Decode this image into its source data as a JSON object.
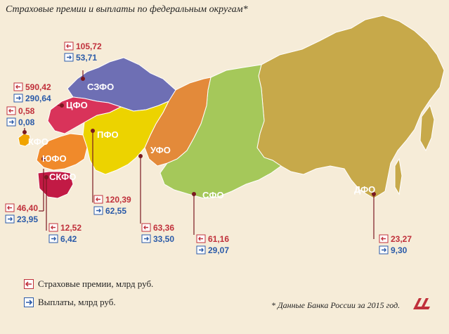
{
  "title": "Страховые премии и выплаты по федеральным округам*",
  "legend": {
    "premiums": "Страховые премии, млрд руб.",
    "payouts": "Выплаты, млрд руб."
  },
  "footnote": "* Данные Банка России за 2015 год.",
  "colors": {
    "premium": "#c0303b",
    "payout": "#2a5aa8",
    "szfo": "#6e6fb4",
    "cfo": "#d9335a",
    "pfo": "#ecd300",
    "ufo": "#e38a3a",
    "sfo": "#a5c85a",
    "dfo": "#c7a94a",
    "kfo": "#f0a400",
    "yufo": "#f08a2b",
    "skfo": "#c21a45"
  },
  "okruga": [
    {
      "id": "szfo",
      "name": "СЗФО",
      "premium": "105,72",
      "payout": "53,71"
    },
    {
      "id": "cfo",
      "name": "ЦФО",
      "premium": "590,42",
      "payout": "290,64"
    },
    {
      "id": "kfo",
      "name": "КФО",
      "premium": "0,58",
      "payout": "0,08"
    },
    {
      "id": "yufo",
      "name": "ЮФО",
      "premium": "46,40",
      "payout": "23,95"
    },
    {
      "id": "skfo",
      "name": "СКФО",
      "premium": "12,52",
      "payout": "6,42"
    },
    {
      "id": "pfo",
      "name": "ПФО",
      "premium": "120,39",
      "payout": "62,55"
    },
    {
      "id": "ufo",
      "name": "УФО",
      "premium": "63,36",
      "payout": "33,50"
    },
    {
      "id": "sfo",
      "name": "СФО",
      "premium": "61,16",
      "payout": "29,07"
    },
    {
      "id": "dfo",
      "name": "ДФО",
      "premium": "23,27",
      "payout": "9,30"
    }
  ]
}
